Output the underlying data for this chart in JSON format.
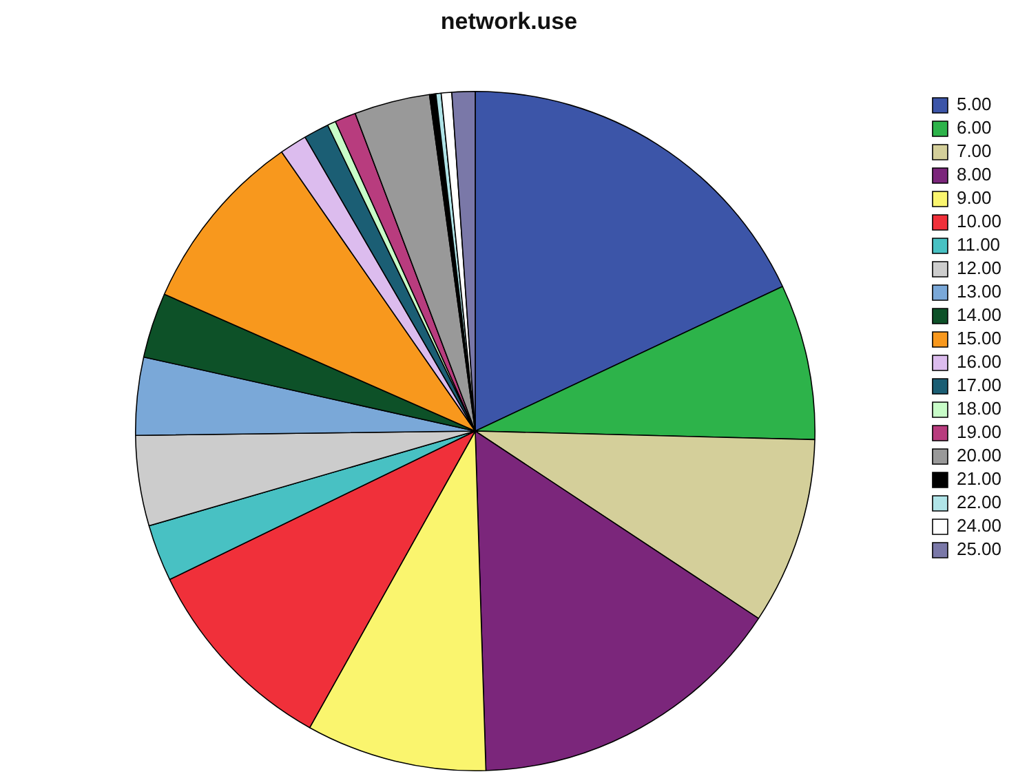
{
  "chart_data": {
    "type": "pie",
    "title": "network.use",
    "categories": [
      "5.00",
      "6.00",
      "7.00",
      "8.00",
      "9.00",
      "10.00",
      "11.00",
      "12.00",
      "13.00",
      "14.00",
      "15.00",
      "16.00",
      "17.00",
      "18.00",
      "19.00",
      "20.00",
      "21.00",
      "22.00",
      "24.00",
      "25.00"
    ],
    "values": [
      18.0,
      7.4,
      8.9,
      15.2,
      8.6,
      9.7,
      2.7,
      4.3,
      3.7,
      3.1,
      8.75,
      1.3,
      1.2,
      0.4,
      1.0,
      3.6,
      0.3,
      0.25,
      0.5,
      1.1
    ],
    "colors": [
      "#3c55a8",
      "#2db34a",
      "#d4cf9a",
      "#7b267b",
      "#faf56e",
      "#f0303a",
      "#48c1c3",
      "#cccccc",
      "#7aa8d8",
      "#0d5128",
      "#f8981d",
      "#dcbcee",
      "#1b5e74",
      "#c8fcc8",
      "#b83c7e",
      "#999999",
      "#000000",
      "#b0e4e8",
      "#ffffff",
      "#7a78a8"
    ],
    "legend": "top right"
  }
}
